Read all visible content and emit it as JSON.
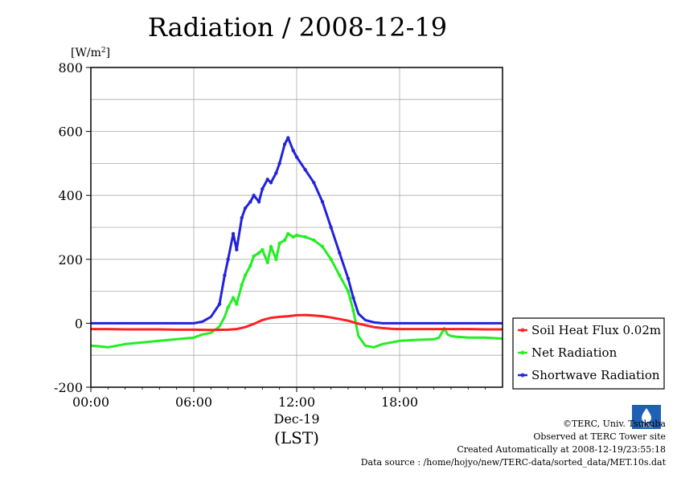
{
  "chart_data": {
    "type": "line",
    "title": "Radiation / 2008-12-19",
    "ylabel_unit": "[W/m",
    "ylabel_sup": "2",
    "ylabel_close": "]",
    "ylim": [
      -200,
      800
    ],
    "yticks": [
      -200,
      0,
      200,
      400,
      600,
      800
    ],
    "xlim": [
      0,
      24
    ],
    "xticks": [
      0,
      6,
      12,
      18
    ],
    "xtick_labels": [
      "00:00",
      "06:00",
      "12:00",
      "18:00"
    ],
    "xdate_label": "Dec-19",
    "xlabel": "(LST)",
    "grid": true,
    "legend_position": "right",
    "series": [
      {
        "name": "Soil Heat Flux 0.02m",
        "color": "#ff2020",
        "x": [
          0,
          1,
          2,
          3,
          4,
          5,
          6,
          7,
          8,
          8.5,
          9,
          9.5,
          10,
          10.5,
          11,
          11.5,
          12,
          12.5,
          13,
          13.5,
          14,
          14.5,
          15,
          15.5,
          16,
          16.5,
          17,
          17.5,
          18,
          19,
          20,
          21,
          22,
          23,
          24
        ],
        "y": [
          -18,
          -18,
          -19,
          -19,
          -19,
          -20,
          -20,
          -21,
          -20,
          -18,
          -12,
          -2,
          10,
          17,
          20,
          22,
          25,
          26,
          24,
          22,
          18,
          13,
          8,
          0,
          -6,
          -12,
          -15,
          -17,
          -18,
          -18,
          -18,
          -18,
          -18,
          -19,
          -19
        ]
      },
      {
        "name": "Net Radiation",
        "color": "#22ee22",
        "x": [
          0,
          0.5,
          1,
          2,
          3,
          4,
          5,
          6,
          6.5,
          7,
          7.5,
          7.8,
          8,
          8.3,
          8.5,
          8.8,
          9,
          9.3,
          9.5,
          9.8,
          10,
          10.3,
          10.5,
          10.8,
          11,
          11.3,
          11.5,
          11.8,
          12,
          12.5,
          13,
          13.5,
          14,
          14.5,
          15,
          15.3,
          15.6,
          16,
          16.5,
          17,
          18,
          19,
          20,
          20.3,
          20.6,
          20.8,
          21,
          21.3,
          22,
          23,
          24
        ],
        "y": [
          -70,
          -72,
          -75,
          -65,
          -60,
          -55,
          -50,
          -45,
          -35,
          -30,
          -10,
          20,
          50,
          80,
          60,
          120,
          150,
          180,
          210,
          220,
          230,
          190,
          240,
          200,
          250,
          260,
          280,
          270,
          275,
          270,
          260,
          240,
          200,
          150,
          100,
          40,
          -40,
          -70,
          -75,
          -65,
          -55,
          -52,
          -50,
          -45,
          -15,
          -35,
          -40,
          -42,
          -45,
          -45,
          -48
        ]
      },
      {
        "name": "Shortwave Radiation",
        "color": "#2222dd",
        "x": [
          0,
          1,
          2,
          3,
          4,
          5,
          6,
          6.5,
          7,
          7.5,
          7.8,
          8,
          8.3,
          8.5,
          8.8,
          9,
          9.3,
          9.5,
          9.8,
          10,
          10.3,
          10.5,
          10.8,
          11,
          11.3,
          11.5,
          11.8,
          12,
          12.5,
          13,
          13.5,
          14,
          14.5,
          15,
          15.3,
          15.6,
          16,
          16.5,
          17,
          18,
          19,
          20,
          21,
          22,
          23,
          24
        ],
        "y": [
          0,
          0,
          0,
          0,
          0,
          0,
          0,
          5,
          20,
          60,
          150,
          200,
          280,
          230,
          330,
          360,
          380,
          400,
          380,
          420,
          450,
          440,
          470,
          500,
          560,
          580,
          540,
          520,
          480,
          440,
          380,
          300,
          220,
          140,
          80,
          30,
          10,
          3,
          0,
          0,
          0,
          0,
          0,
          0,
          0,
          0
        ]
      }
    ]
  },
  "credits": {
    "copyright": "©TERC, Univ. Tsukuba",
    "observed": "Observed at TERC Tower site",
    "created": "Created Automatically at 2008-12-19/23:55:18",
    "source": "Data source : /home/hojyo/new/TERC-data/sorted_data/MET.10s.dat",
    "logo_text": "TERC"
  }
}
